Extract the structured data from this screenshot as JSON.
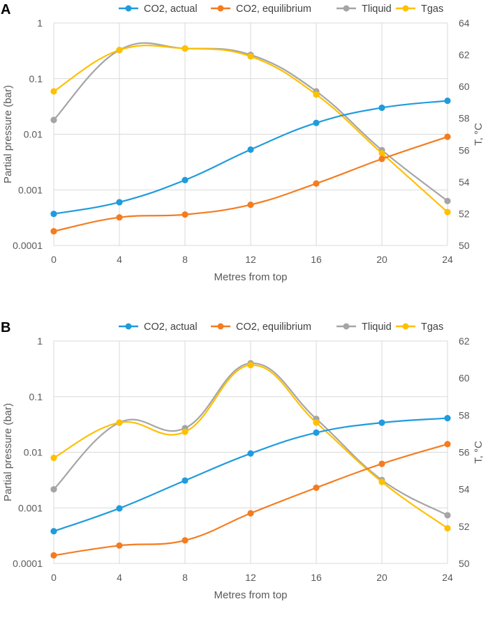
{
  "chart_data": [
    {
      "type": "line",
      "panel": "A",
      "xlabel": "Metres from top",
      "ylabel_left": "Partial pressure (bar)",
      "ylabel_right": "T, °C",
      "x": [
        0,
        4,
        8,
        12,
        16,
        20,
        24
      ],
      "x_tick_labels": [
        "0",
        "4",
        "8",
        "12",
        "16",
        "20",
        "24"
      ],
      "left_axis": {
        "scale": "log",
        "range": [
          0.0001,
          1
        ],
        "tick_labels": [
          "1",
          "0.1",
          "0.01",
          "0.001",
          "0.0001"
        ]
      },
      "right_axis": {
        "scale": "linear",
        "range": [
          50,
          64
        ],
        "tick_labels": [
          "64",
          "62",
          "60",
          "58",
          "56",
          "54",
          "52",
          "50"
        ]
      },
      "series": [
        {
          "name": "CO2, actual",
          "color": "#1f9bde",
          "axis": "left",
          "values": [
            0.00037,
            0.0006,
            0.0015,
            0.0053,
            0.016,
            0.03,
            0.04
          ]
        },
        {
          "name": "CO2, equilibrium",
          "color": "#f47c20",
          "axis": "left",
          "values": [
            0.00018,
            0.00032,
            0.00036,
            0.00054,
            0.0013,
            0.0036,
            0.009
          ]
        },
        {
          "name": "Tliquid",
          "color": "#a5a5a5",
          "axis": "right",
          "values": [
            57.9,
            62.3,
            62.4,
            62.0,
            59.7,
            56.0,
            52.8
          ]
        },
        {
          "name": "Tgas",
          "color": "#ffc000",
          "axis": "right",
          "values": [
            59.7,
            62.3,
            62.4,
            61.9,
            59.5,
            55.8,
            52.1
          ]
        }
      ]
    },
    {
      "type": "line",
      "panel": "B",
      "xlabel": "Metres from top",
      "ylabel_left": "Partial pressure (bar)",
      "ylabel_right": "T, °C",
      "x": [
        0,
        4,
        8,
        12,
        16,
        20,
        24
      ],
      "x_tick_labels": [
        "0",
        "4",
        "8",
        "12",
        "16",
        "20",
        "24"
      ],
      "left_axis": {
        "scale": "log",
        "range": [
          0.0001,
          1
        ],
        "tick_labels": [
          "1",
          "0.1",
          "0.01",
          "0.001",
          "0.0001"
        ]
      },
      "right_axis": {
        "scale": "linear",
        "range": [
          50,
          62
        ],
        "tick_labels": [
          "62",
          "60",
          "58",
          "56",
          "54",
          "52",
          "50"
        ]
      },
      "series": [
        {
          "name": "CO2, actual",
          "color": "#1f9bde",
          "axis": "left",
          "values": [
            0.00038,
            0.00098,
            0.0031,
            0.0095,
            0.0225,
            0.034,
            0.041
          ]
        },
        {
          "name": "CO2, equilibrium",
          "color": "#f47c20",
          "axis": "left",
          "values": [
            0.00014,
            0.00021,
            0.00026,
            0.0008,
            0.0023,
            0.0062,
            0.014
          ]
        },
        {
          "name": "Tliquid",
          "color": "#a5a5a5",
          "axis": "right",
          "values": [
            54.0,
            57.6,
            57.3,
            60.8,
            57.8,
            54.5,
            52.6
          ]
        },
        {
          "name": "Tgas",
          "color": "#ffc000",
          "axis": "right",
          "values": [
            55.7,
            57.6,
            57.1,
            60.7,
            57.6,
            54.4,
            51.9
          ]
        }
      ]
    }
  ]
}
